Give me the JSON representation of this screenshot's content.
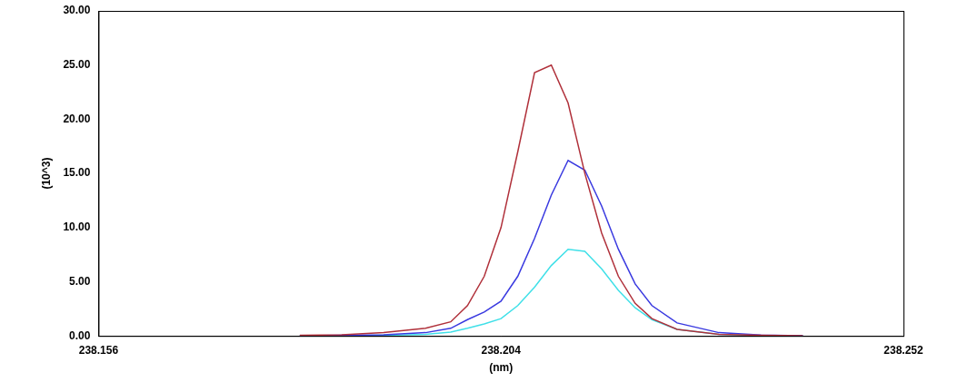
{
  "chart_data": {
    "type": "line",
    "x_label": "(nm)",
    "y_label": "(10^3)",
    "x": [
      238.18,
      238.185,
      238.19,
      238.195,
      238.198,
      238.2,
      238.202,
      238.204,
      238.206,
      238.208,
      238.21,
      238.212,
      238.214,
      238.216,
      238.218,
      238.22,
      238.222,
      238.225,
      238.23,
      238.235,
      238.24
    ],
    "series": [
      {
        "color": "#b0303a",
        "values": [
          0.05,
          0.1,
          0.3,
          0.7,
          1.3,
          2.8,
          5.5,
          10.0,
          17.0,
          24.3,
          25.0,
          21.5,
          15.0,
          9.5,
          5.5,
          3.0,
          1.6,
          0.6,
          0.15,
          0.05,
          0.02
        ]
      },
      {
        "color": "#3a3ae0",
        "values": [
          0.02,
          0.05,
          0.1,
          0.3,
          0.7,
          1.5,
          2.2,
          3.2,
          5.5,
          9.0,
          13.0,
          16.2,
          15.3,
          12.0,
          8.0,
          4.8,
          2.8,
          1.2,
          0.3,
          0.08,
          0.02
        ]
      },
      {
        "color": "#40e0e8",
        "values": [
          0.01,
          0.02,
          0.05,
          0.15,
          0.35,
          0.7,
          1.1,
          1.6,
          2.8,
          4.5,
          6.5,
          8.0,
          7.8,
          6.2,
          4.2,
          2.6,
          1.5,
          0.6,
          0.15,
          0.03,
          0.01
        ]
      }
    ],
    "xlim": [
      238.156,
      238.252
    ],
    "xticks": [
      238.156,
      238.204,
      238.252
    ],
    "ylim": [
      0,
      30
    ],
    "yticks": [
      {
        "value": 0,
        "label": "0.00"
      },
      {
        "value": 5,
        "label": "5.00"
      },
      {
        "value": 10,
        "label": "10.00"
      },
      {
        "value": 15,
        "label": "15.00"
      },
      {
        "value": 20,
        "label": "20.00"
      },
      {
        "value": 25,
        "label": "25.00"
      },
      {
        "value": 30,
        "label": "30.00"
      }
    ],
    "grid": false
  }
}
